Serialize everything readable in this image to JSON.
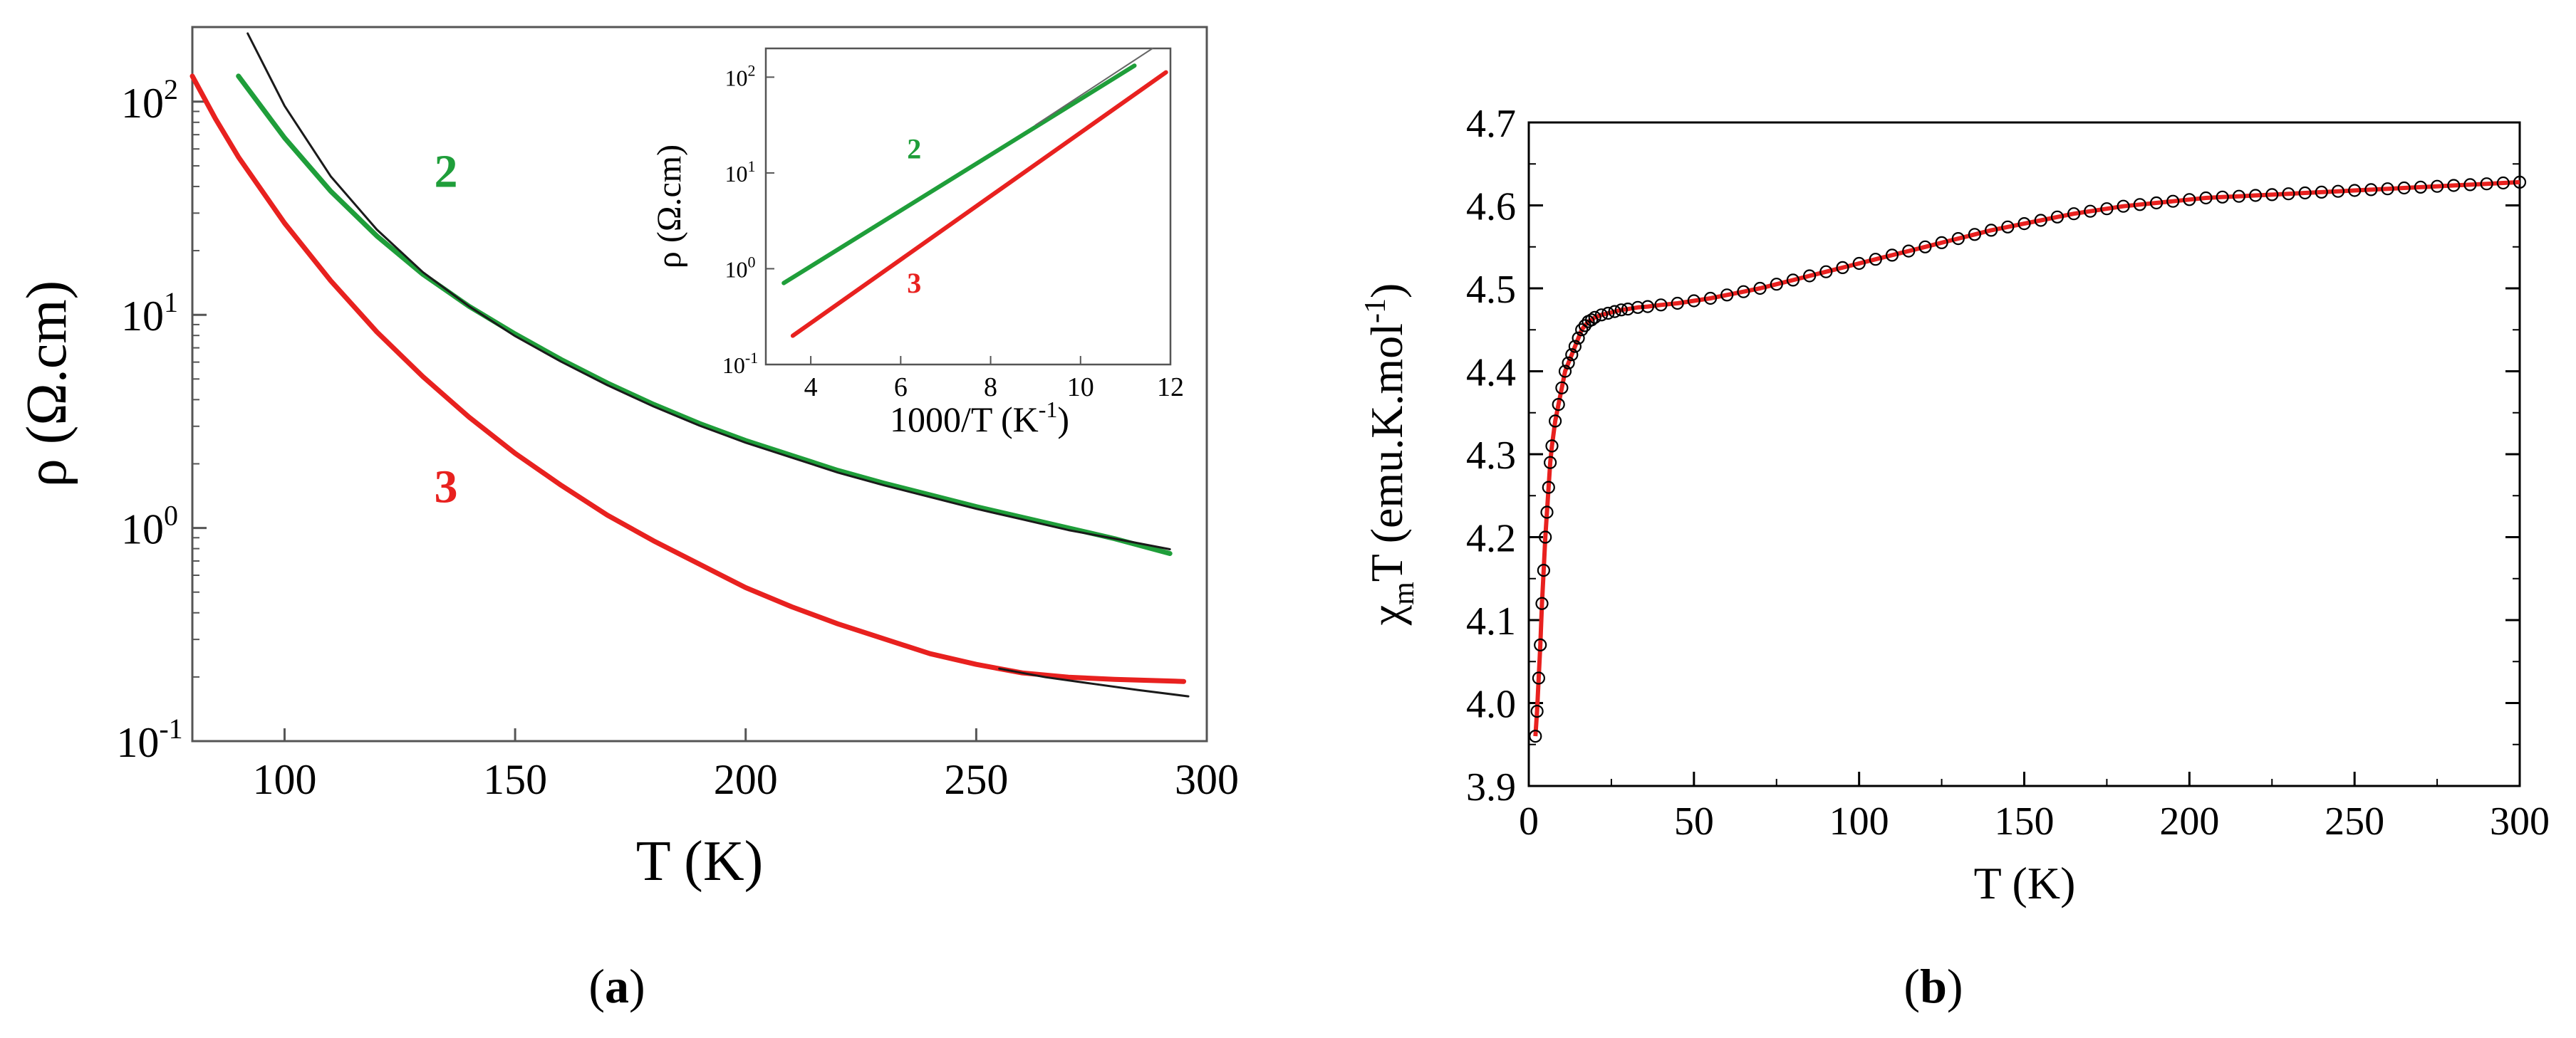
{
  "figure": {
    "panel_a_label": "a",
    "panel_b_label": "b"
  },
  "chart_data": [
    {
      "id": "panel-a-main",
      "type": "line",
      "title": "",
      "xlabel": "T (K)",
      "ylabel": "ρ (Ω.cm)",
      "xlim": [
        80,
        300
      ],
      "ylim_log10": [
        -1,
        2.35
      ],
      "yscale": "log",
      "x_ticks": [
        100,
        150,
        200,
        250,
        300
      ],
      "y_ticks": [
        {
          "base": "10",
          "exp": "-1",
          "log": -1
        },
        {
          "base": "10",
          "exp": "0",
          "log": 0
        },
        {
          "base": "10",
          "exp": "1",
          "log": 1
        },
        {
          "base": "10",
          "exp": "2",
          "log": 2
        }
      ],
      "series": [
        {
          "name": "2",
          "color": "#1f9e3a",
          "points": [
            [
              90,
              2.12
            ],
            [
              100,
              1.83
            ],
            [
              110,
              1.58
            ],
            [
              120,
              1.37
            ],
            [
              130,
              1.19
            ],
            [
              140,
              1.04
            ],
            [
              150,
              0.91
            ],
            [
              160,
              0.79
            ],
            [
              170,
              0.68
            ],
            [
              180,
              0.58
            ],
            [
              190,
              0.49
            ],
            [
              200,
              0.41
            ],
            [
              210,
              0.34
            ],
            [
              220,
              0.27
            ],
            [
              230,
              0.21
            ],
            [
              240,
              0.155
            ],
            [
              250,
              0.1
            ],
            [
              260,
              0.05
            ],
            [
              270,
              0.0
            ],
            [
              280,
              -0.05
            ],
            [
              292,
              -0.12
            ]
          ]
        },
        {
          "name": "3",
          "color": "#e8211f",
          "points": [
            [
              80,
              2.12
            ],
            [
              85,
              1.92
            ],
            [
              90,
              1.74
            ],
            [
              100,
              1.43
            ],
            [
              110,
              1.16
            ],
            [
              120,
              0.92
            ],
            [
              130,
              0.71
            ],
            [
              140,
              0.52
            ],
            [
              150,
              0.35
            ],
            [
              160,
              0.2
            ],
            [
              170,
              0.06
            ],
            [
              180,
              -0.06
            ],
            [
              190,
              -0.17
            ],
            [
              200,
              -0.28
            ],
            [
              210,
              -0.37
            ],
            [
              220,
              -0.45
            ],
            [
              230,
              -0.52
            ],
            [
              240,
              -0.59
            ],
            [
              250,
              -0.64
            ],
            [
              260,
              -0.68
            ],
            [
              270,
              -0.7
            ],
            [
              280,
              -0.71
            ],
            [
              295,
              -0.72
            ]
          ]
        },
        {
          "name": "fit-2",
          "color": "#1a1a1a",
          "points": [
            [
              92,
              2.32
            ],
            [
              100,
              1.98
            ],
            [
              110,
              1.65
            ],
            [
              120,
              1.4
            ],
            [
              130,
              1.2
            ],
            [
              140,
              1.04
            ],
            [
              150,
              0.9
            ],
            [
              160,
              0.78
            ],
            [
              170,
              0.67
            ],
            [
              180,
              0.57
            ],
            [
              190,
              0.48
            ],
            [
              200,
              0.4
            ],
            [
              210,
              0.33
            ],
            [
              220,
              0.26
            ],
            [
              230,
              0.2
            ],
            [
              240,
              0.145
            ],
            [
              250,
              0.09
            ],
            [
              260,
              0.04
            ],
            [
              270,
              -0.01
            ],
            [
              280,
              -0.05
            ],
            [
              292,
              -0.1
            ]
          ]
        },
        {
          "name": "fit-3",
          "color": "#1a1a1a",
          "points": [
            [
              255,
              -0.66
            ],
            [
              265,
              -0.7
            ],
            [
              275,
              -0.73
            ],
            [
              285,
              -0.76
            ],
            [
              296,
              -0.79
            ]
          ]
        }
      ],
      "annotations": [
        {
          "text": "2",
          "color": "#1f9e3a",
          "at": [
            135,
            1.6
          ]
        },
        {
          "text": "3",
          "color": "#e8211f",
          "at": [
            135,
            0.12
          ]
        }
      ]
    },
    {
      "id": "panel-a-inset",
      "type": "line",
      "title": "",
      "xlabel_main": "1000/T (K",
      "xlabel_sup": "-1",
      "xlabel_close": ")",
      "ylabel": "ρ (Ω.cm)",
      "xlim": [
        3,
        12
      ],
      "ylim_log10": [
        -1,
        2.3
      ],
      "yscale": "log",
      "x_ticks": [
        4,
        6,
        8,
        10,
        12
      ],
      "y_ticks": [
        {
          "base": "10",
          "exp": "-1",
          "log": -1
        },
        {
          "base": "10",
          "exp": "0",
          "log": 0
        },
        {
          "base": "10",
          "exp": "1",
          "log": 1
        },
        {
          "base": "10",
          "exp": "2",
          "log": 2
        }
      ],
      "series": [
        {
          "name": "2",
          "color": "#1f9e3a",
          "points": [
            [
              3.4,
              -0.15
            ],
            [
              11.2,
              2.12
            ]
          ]
        },
        {
          "name": "3",
          "color": "#e8211f",
          "points": [
            [
              3.6,
              -0.7
            ],
            [
              11.9,
              2.05
            ]
          ]
        },
        {
          "name": "fit-2",
          "color": "#666666",
          "points": [
            [
              9.0,
              1.5
            ],
            [
              11.6,
              2.3
            ]
          ]
        }
      ],
      "annotations": [
        {
          "text": "2",
          "color": "#1f9e3a",
          "at": [
            6.3,
            1.15
          ]
        },
        {
          "text": "3",
          "color": "#e8211f",
          "at": [
            6.3,
            -0.25
          ]
        }
      ]
    },
    {
      "id": "panel-b",
      "type": "scatter",
      "title": "",
      "xlabel": "T (K)",
      "ylabel_chi": "χ",
      "ylabel_m": "m",
      "ylabel_mid": "T (emu.K.mol",
      "ylabel_sup": "-1",
      "ylabel_close": ")",
      "xlim": [
        0,
        300
      ],
      "ylim": [
        3.9,
        4.7
      ],
      "x_ticks": [
        0,
        50,
        100,
        150,
        200,
        250,
        300
      ],
      "y_ticks": [
        "3.9",
        "4.0",
        "4.1",
        "4.2",
        "4.3",
        "4.4",
        "4.5",
        "4.6",
        "4.7"
      ],
      "series": [
        {
          "name": "data",
          "color": "#000000",
          "marker": "open-circle",
          "x": [
            2,
            2.5,
            3,
            3.5,
            4,
            4.5,
            5,
            5.5,
            6,
            6.5,
            7,
            8,
            9,
            10,
            11,
            12,
            13,
            14,
            15,
            16,
            17,
            18,
            19,
            20,
            22,
            24,
            26,
            28,
            30,
            33,
            36,
            40,
            45,
            50,
            55,
            60,
            65,
            70,
            75,
            80,
            85,
            90,
            95,
            100,
            105,
            110,
            115,
            120,
            125,
            130,
            135,
            140,
            145,
            150,
            155,
            160,
            165,
            170,
            175,
            180,
            185,
            190,
            195,
            200,
            205,
            210,
            215,
            220,
            225,
            230,
            235,
            240,
            245,
            250,
            255,
            260,
            265,
            270,
            275,
            280,
            285,
            290,
            295,
            300
          ],
          "y": [
            3.96,
            3.99,
            4.03,
            4.07,
            4.12,
            4.16,
            4.2,
            4.23,
            4.26,
            4.29,
            4.31,
            4.34,
            4.36,
            4.38,
            4.4,
            4.41,
            4.42,
            4.43,
            4.44,
            4.45,
            4.455,
            4.46,
            4.462,
            4.465,
            4.468,
            4.47,
            4.472,
            4.474,
            4.475,
            4.477,
            4.478,
            4.48,
            4.482,
            4.485,
            4.488,
            4.492,
            4.496,
            4.5,
            4.505,
            4.51,
            4.515,
            4.52,
            4.525,
            4.53,
            4.535,
            4.54,
            4.545,
            4.55,
            4.555,
            4.56,
            4.565,
            4.57,
            4.574,
            4.578,
            4.582,
            4.586,
            4.59,
            4.593,
            4.596,
            4.599,
            4.601,
            4.603,
            4.605,
            4.607,
            4.609,
            4.61,
            4.611,
            4.612,
            4.613,
            4.614,
            4.615,
            4.616,
            4.617,
            4.618,
            4.619,
            4.62,
            4.621,
            4.622,
            4.623,
            4.624,
            4.625,
            4.626,
            4.627,
            4.628
          ]
        },
        {
          "name": "fit",
          "color": "#e8211f",
          "x": [
            2,
            2.5,
            3,
            3.5,
            4,
            4.5,
            5,
            5.5,
            6,
            6.5,
            7,
            8,
            9,
            10,
            11,
            12,
            13,
            14,
            15,
            16,
            17,
            18,
            19,
            20,
            22,
            24,
            26,
            28,
            30,
            33,
            36,
            40,
            45,
            50,
            55,
            60,
            65,
            70,
            75,
            80,
            85,
            90,
            95,
            100,
            105,
            110,
            115,
            120,
            125,
            130,
            135,
            140,
            145,
            150,
            155,
            160,
            165,
            170,
            175,
            180,
            185,
            190,
            195,
            200,
            205,
            210,
            215,
            220,
            225,
            230,
            235,
            240,
            245,
            250,
            255,
            260,
            265,
            270,
            275,
            280,
            285,
            290,
            295,
            300
          ],
          "y": [
            3.96,
            3.99,
            4.03,
            4.07,
            4.12,
            4.16,
            4.2,
            4.23,
            4.26,
            4.29,
            4.31,
            4.34,
            4.36,
            4.38,
            4.4,
            4.41,
            4.42,
            4.43,
            4.44,
            4.45,
            4.455,
            4.46,
            4.462,
            4.465,
            4.468,
            4.47,
            4.472,
            4.474,
            4.475,
            4.477,
            4.478,
            4.48,
            4.482,
            4.485,
            4.488,
            4.492,
            4.496,
            4.5,
            4.505,
            4.51,
            4.515,
            4.52,
            4.525,
            4.53,
            4.535,
            4.54,
            4.545,
            4.55,
            4.555,
            4.56,
            4.565,
            4.57,
            4.574,
            4.578,
            4.582,
            4.586,
            4.59,
            4.593,
            4.596,
            4.599,
            4.601,
            4.603,
            4.605,
            4.607,
            4.609,
            4.61,
            4.611,
            4.612,
            4.613,
            4.614,
            4.615,
            4.616,
            4.617,
            4.618,
            4.619,
            4.62,
            4.621,
            4.622,
            4.623,
            4.624,
            4.625,
            4.626,
            4.627,
            4.628
          ]
        }
      ]
    }
  ]
}
